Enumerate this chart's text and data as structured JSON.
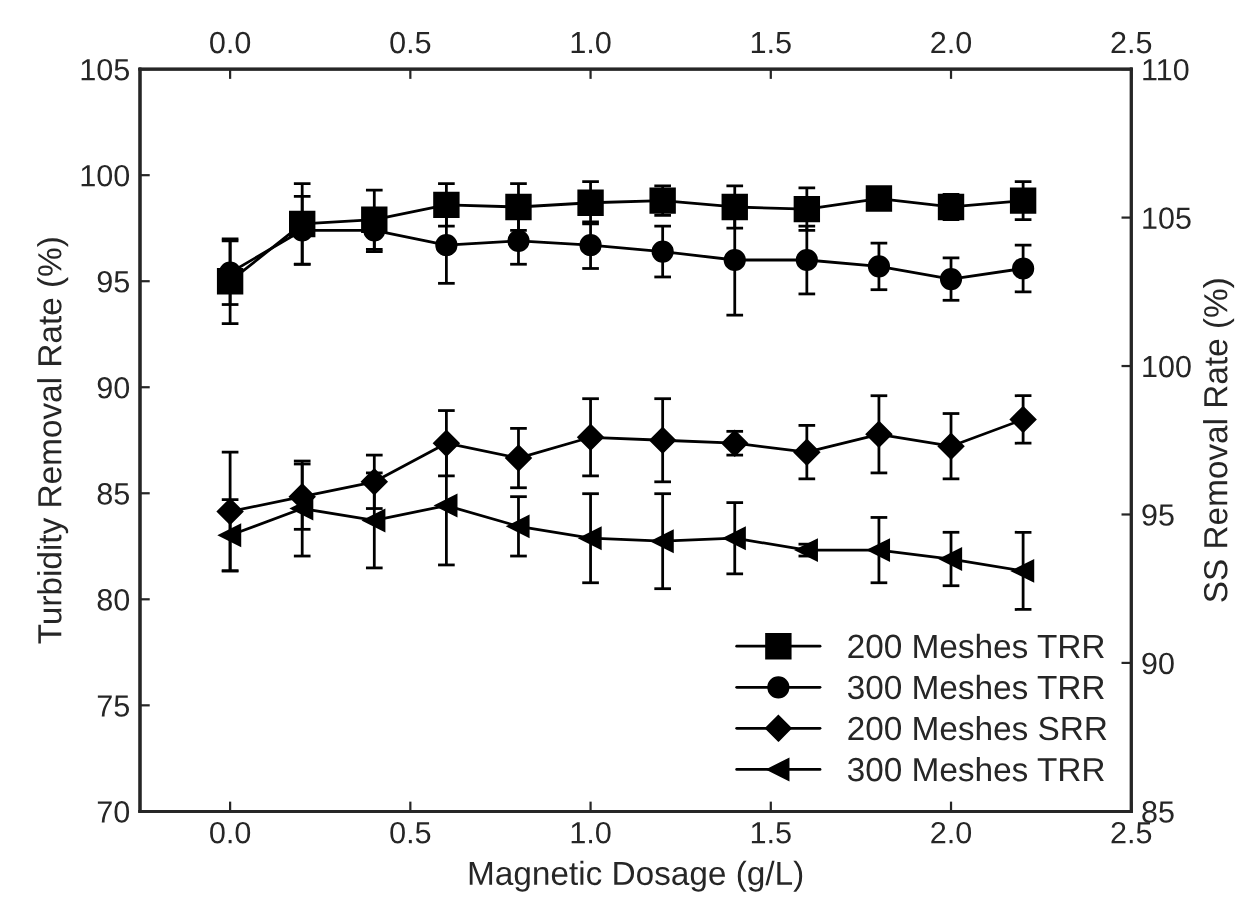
{
  "chart_data": {
    "type": "line",
    "xlabel": "Magnetic Dosage (g/L)",
    "ylabel": "Turbidity Removal Rate (%)",
    "y2label": "SS Removal Rate (%)",
    "x": [
      0.0,
      0.2,
      0.4,
      0.6,
      0.8,
      1.0,
      1.2,
      1.4,
      1.6,
      1.8,
      2.0,
      2.2
    ],
    "xlim": [
      -0.25,
      2.5
    ],
    "xticks": [
      {
        "value": 0.0,
        "label": "0.0"
      },
      {
        "value": 0.5,
        "label": "0.5"
      },
      {
        "value": 1.0,
        "label": "1.0"
      },
      {
        "value": 1.5,
        "label": "1.5"
      },
      {
        "value": 2.0,
        "label": "2.0"
      },
      {
        "value": 2.5,
        "label": "2.5"
      }
    ],
    "x2lim": [
      -0.25,
      2.5
    ],
    "x2ticks": [
      {
        "value": 0.0,
        "label": "0.0"
      },
      {
        "value": 0.5,
        "label": "0.5"
      },
      {
        "value": 1.0,
        "label": "1.0"
      },
      {
        "value": 1.5,
        "label": "1.5"
      },
      {
        "value": 2.0,
        "label": "2.0"
      },
      {
        "value": 2.5,
        "label": "2.5"
      }
    ],
    "ylim": [
      70,
      105
    ],
    "yticks": [
      70,
      75,
      80,
      85,
      90,
      95,
      100,
      105
    ],
    "y2lim": [
      85,
      110
    ],
    "y2ticks": [
      85,
      90,
      95,
      100,
      105,
      110
    ],
    "series": [
      {
        "name": "200 Meshes TRR",
        "color": "#000000",
        "marker": "square",
        "values": [
          95.0,
          97.7,
          97.9,
          98.6,
          98.5,
          98.7,
          98.8,
          98.5,
          98.4,
          98.9,
          98.5,
          98.8
        ],
        "errors": [
          2.0,
          1.9,
          1.4,
          1.0,
          1.1,
          1.0,
          0.7,
          1.0,
          1.0,
          0.3,
          0.6,
          0.9
        ]
      },
      {
        "name": "300 Meshes TRR",
        "color": "#000000",
        "marker": "circle",
        "values": [
          95.4,
          97.4,
          97.4,
          96.7,
          96.9,
          96.7,
          96.4,
          96.0,
          96.0,
          95.7,
          95.1,
          95.6
        ],
        "errors": [
          1.5,
          1.6,
          1.0,
          1.8,
          1.1,
          1.1,
          1.2,
          2.6,
          1.6,
          1.1,
          1.0,
          1.1
        ]
      },
      {
        "name": "200 Meshes SRR",
        "color": "#000000",
        "marker": "diamond",
        "axis": "y2",
        "values": [
          95.1,
          95.6,
          96.1,
          97.4,
          96.9,
          97.6,
          97.5,
          97.4,
          97.1,
          97.7,
          97.3,
          98.2
        ],
        "errors": [
          2.0,
          1.1,
          0.9,
          1.1,
          1.0,
          1.3,
          1.4,
          0.4,
          0.9,
          1.3,
          1.1,
          0.8
        ]
      },
      {
        "name": "300 Meshes TRR",
        "color": "#000000",
        "marker": "triangle",
        "axis": "y2",
        "values": [
          94.3,
          95.2,
          94.8,
          95.3,
          94.6,
          94.2,
          94.1,
          94.2,
          93.8,
          93.8,
          93.5,
          93.1
        ],
        "errors": [
          1.2,
          1.6,
          1.6,
          2.0,
          1.0,
          1.5,
          1.6,
          1.2,
          0.2,
          1.1,
          0.9,
          1.3
        ]
      }
    ],
    "legend": "bottom right",
    "grid": false,
    "line_style": "solid"
  }
}
